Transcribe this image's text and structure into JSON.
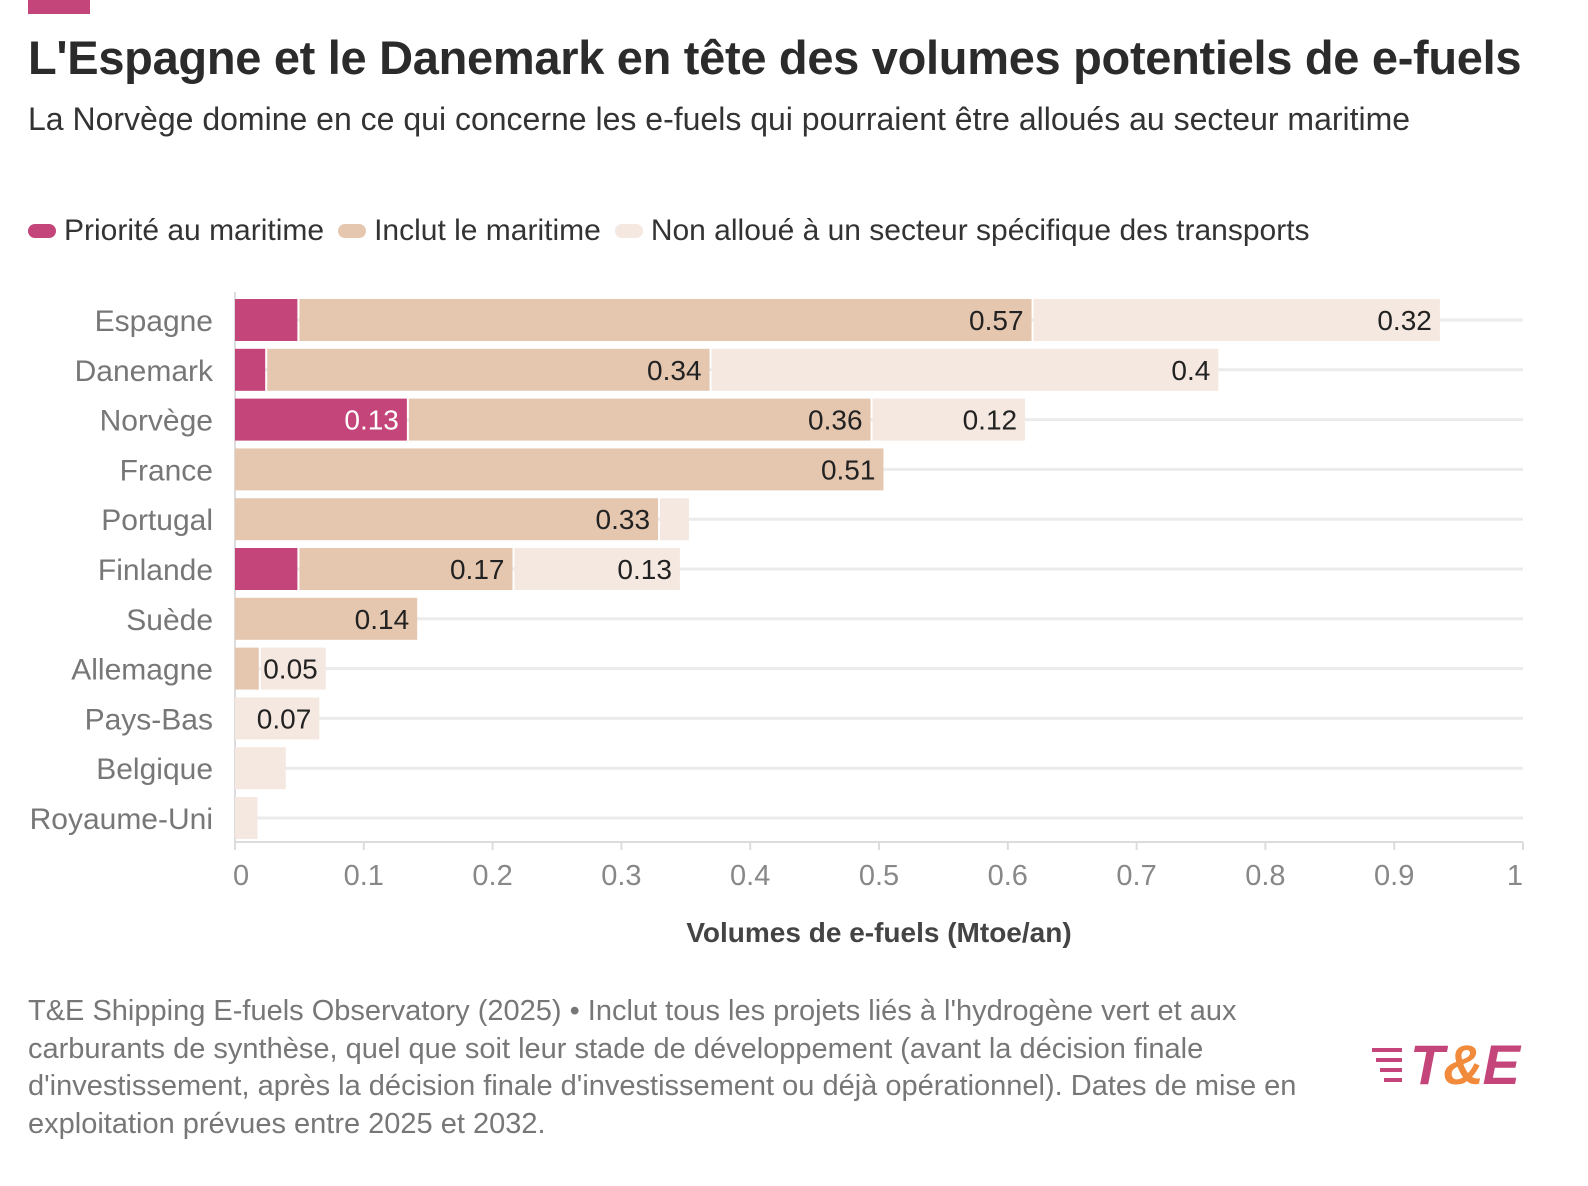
{
  "header": {
    "title": "L'Espagne et le Danemark en tête des volumes potentiels de e-fuels",
    "subtitle": "La Norvège domine en ce qui concerne les e-fuels qui pourraient être alloués au secteur maritime"
  },
  "legend": [
    {
      "label": "Priorité au maritime",
      "color": "#c4457a"
    },
    {
      "label": "Inclut le maritime",
      "color": "#e5c7b0"
    },
    {
      "label": "Non alloué à un secteur spécifique des transports",
      "color": "#f5e8e0"
    }
  ],
  "chart_data": {
    "type": "bar",
    "orientation": "horizontal",
    "stacked": true,
    "categories": [
      "Espagne",
      "Danemark",
      "Norvège",
      "France",
      "Portugal",
      "Finlande",
      "Suède",
      "Allemagne",
      "Pays-Bas",
      "Belgique",
      "Royaume-Uni"
    ],
    "series": [
      {
        "name": "Priorité au maritime",
        "color": "#c4457a",
        "values": [
          0.05,
          0.025,
          0.135,
          0,
          0,
          0.05,
          0,
          0,
          0,
          0,
          0
        ]
      },
      {
        "name": "Inclut le maritime",
        "color": "#e5c7b0",
        "values": [
          0.57,
          0.345,
          0.36,
          0.505,
          0.33,
          0.167,
          0.143,
          0.02,
          0,
          0,
          0
        ]
      },
      {
        "name": "Non alloué à un secteur spécifique des transports",
        "color": "#f5e8e0",
        "values": [
          0.317,
          0.395,
          0.12,
          0,
          0.024,
          0.13,
          0,
          0.052,
          0.067,
          0.041,
          0.019
        ]
      }
    ],
    "labels": [
      [
        "",
        "0.57",
        "0.32"
      ],
      [
        "",
        "0.34",
        "0.4"
      ],
      [
        "0.13",
        "0.36",
        "0.12"
      ],
      [
        "",
        "0.51",
        ""
      ],
      [
        "",
        "0.33",
        ""
      ],
      [
        "",
        "0.17",
        "0.13"
      ],
      [
        "",
        "0.14",
        ""
      ],
      [
        "",
        "",
        "0.05"
      ],
      [
        "",
        "",
        "0.07"
      ],
      [
        "",
        "",
        ""
      ],
      [
        "",
        "",
        ""
      ]
    ],
    "xlabel": "Volumes de e-fuels (Mtoe/an)",
    "xlim": [
      0,
      1
    ],
    "xticks": [
      "0",
      "0.1",
      "0.2",
      "0.3",
      "0.4",
      "0.5",
      "0.6",
      "0.7",
      "0.8",
      "0.9",
      "1"
    ],
    "grid": true
  },
  "source": "T&E Shipping E-fuels Observatory (2025) • Inclut tous les projets liés à l'hydrogène vert et aux carburants de synthèse, quel que soit leur stade de développement (avant la décision finale d'investissement, après la décision finale d'investissement ou déjà opérationnel). Dates de mise en exploitation prévues entre 2025 et 2032.",
  "logo": {
    "prefix": "T",
    "amp": "&",
    "suffix": "E"
  }
}
